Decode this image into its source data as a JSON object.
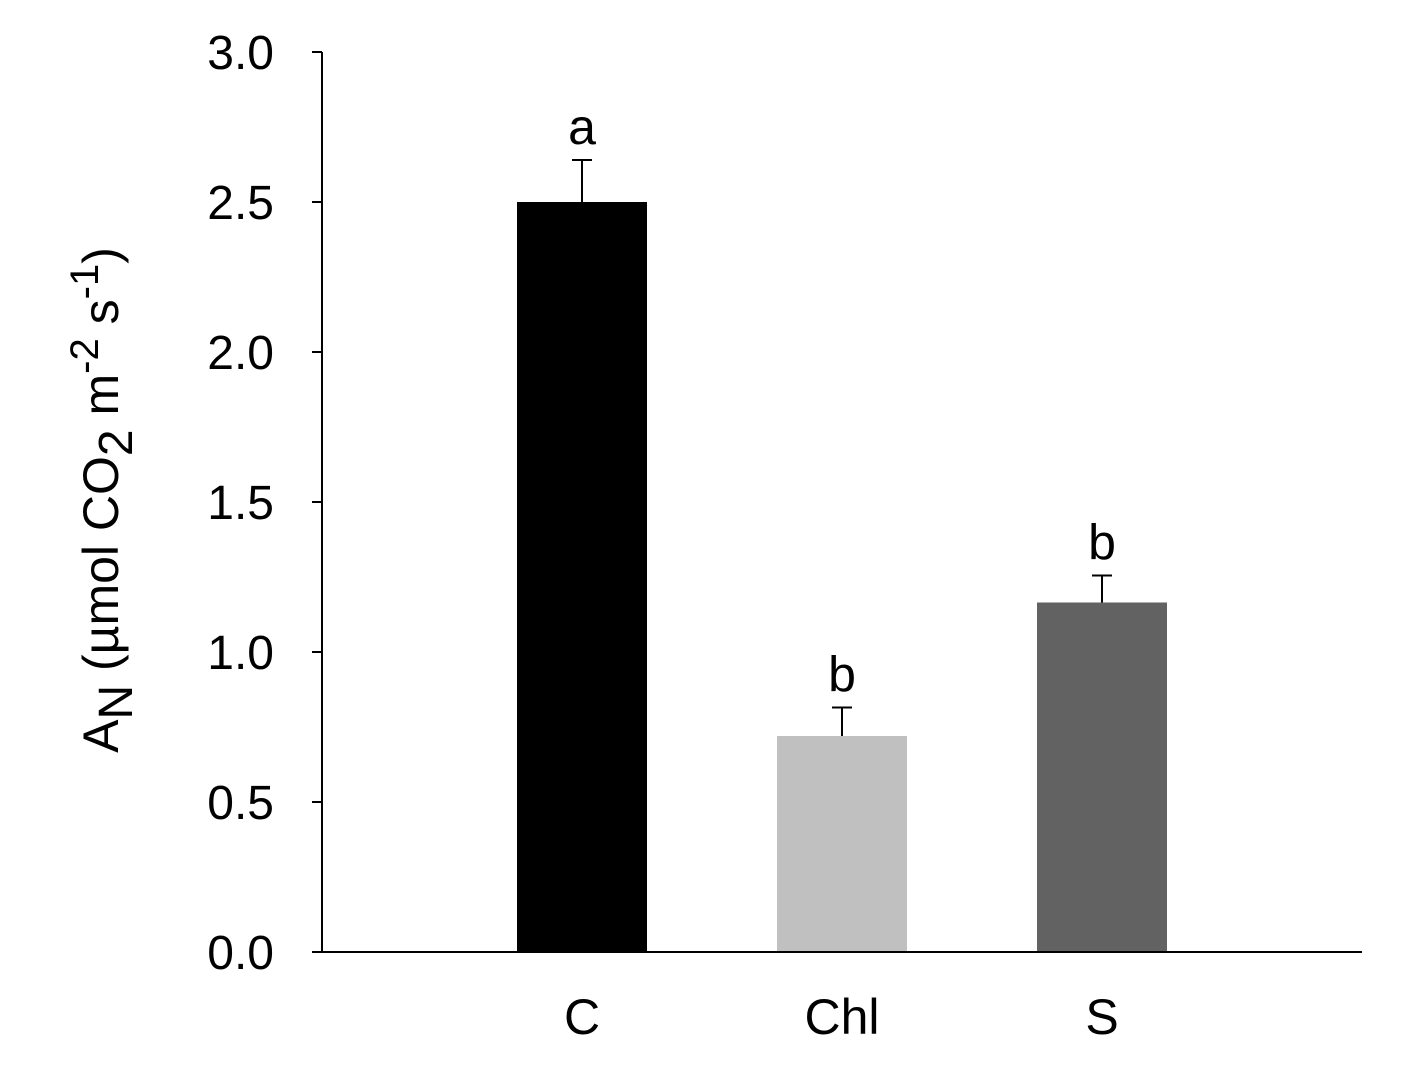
{
  "chart_data": {
    "type": "bar",
    "categories": [
      "C",
      "Chl",
      "S"
    ],
    "values": [
      2.5,
      0.72,
      1.165
    ],
    "errors": [
      0.14,
      0.095,
      0.09
    ],
    "significance": [
      "a",
      "b",
      "b"
    ],
    "colors": [
      "#000000",
      "#c0c0c0",
      "#626262"
    ],
    "ylabel": {
      "main": "A",
      "main_sub": "N",
      "unit_open": " (µmol CO",
      "co2_sub": "2",
      "unit_m": " m",
      "m_sup": "-2",
      "unit_s": " s",
      "s_sup": "-1",
      "unit_close": ")"
    },
    "xlabel": "",
    "title": "",
    "ylim": [
      0,
      3.0
    ],
    "yticks": [
      0.0,
      0.5,
      1.0,
      1.5,
      2.0,
      2.5,
      3.0
    ],
    "ytick_labels": [
      "0.0",
      "0.5",
      "1.0",
      "1.5",
      "2.0",
      "2.5",
      "3.0"
    ],
    "grid": false,
    "legend": "none"
  }
}
